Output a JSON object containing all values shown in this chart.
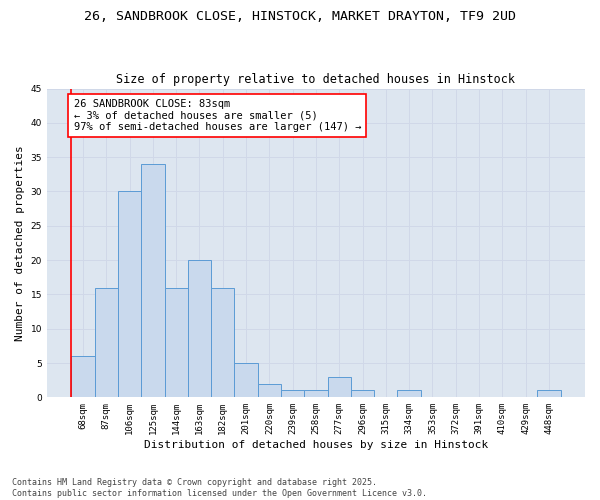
{
  "title_line1": "26, SANDBROOK CLOSE, HINSTOCK, MARKET DRAYTON, TF9 2UD",
  "title_line2": "Size of property relative to detached houses in Hinstock",
  "xlabel": "Distribution of detached houses by size in Hinstock",
  "ylabel": "Number of detached properties",
  "categories": [
    "68sqm",
    "87sqm",
    "106sqm",
    "125sqm",
    "144sqm",
    "163sqm",
    "182sqm",
    "201sqm",
    "220sqm",
    "239sqm",
    "258sqm",
    "277sqm",
    "296sqm",
    "315sqm",
    "334sqm",
    "353sqm",
    "372sqm",
    "391sqm",
    "410sqm",
    "429sqm",
    "448sqm"
  ],
  "values": [
    6,
    16,
    30,
    34,
    16,
    20,
    16,
    5,
    2,
    1,
    1,
    3,
    1,
    0,
    1,
    0,
    0,
    0,
    0,
    0,
    1
  ],
  "bar_color": "#c9d9ed",
  "bar_edge_color": "#5b9bd5",
  "bar_width": 1.0,
  "ylim": [
    0,
    45
  ],
  "yticks": [
    0,
    5,
    10,
    15,
    20,
    25,
    30,
    35,
    40,
    45
  ],
  "annotation_text": "26 SANDBROOK CLOSE: 83sqm\n← 3% of detached houses are smaller (5)\n97% of semi-detached houses are larger (147) →",
  "annotation_box_color": "white",
  "annotation_box_edge_color": "red",
  "vline_color": "red",
  "grid_color": "#d0d8e8",
  "bg_color": "#dde6f0",
  "footer_line1": "Contains HM Land Registry data © Crown copyright and database right 2025.",
  "footer_line2": "Contains public sector information licensed under the Open Government Licence v3.0.",
  "title_fontsize": 9.5,
  "subtitle_fontsize": 8.5,
  "tick_fontsize": 6.5,
  "label_fontsize": 8,
  "annotation_fontsize": 7.5,
  "footer_fontsize": 6
}
